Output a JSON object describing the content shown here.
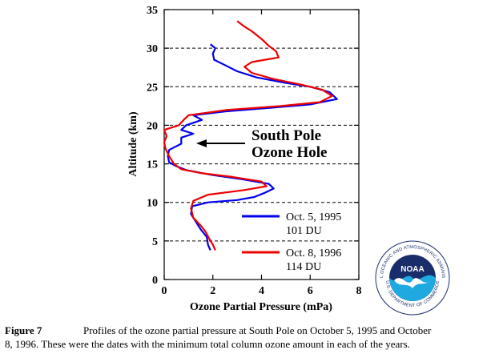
{
  "chart_data": {
    "type": "line",
    "xlabel": "Ozone Partial Pressure (mPa)",
    "ylabel": "Altitude (km)",
    "xlim": [
      0,
      8
    ],
    "ylim": [
      0,
      35
    ],
    "xticks": [
      "0",
      "2",
      "4",
      "6",
      "8"
    ],
    "yticks": [
      "0",
      "5",
      "10",
      "15",
      "20",
      "25",
      "30",
      "35"
    ],
    "grid": "dashed horizontal lines at 5, 10, 15, 20, 25, 30 km",
    "annotation": [
      "South Pole",
      "Ozone Hole"
    ],
    "series": [
      {
        "name": "Oct. 5, 1995",
        "sub": "101 DU",
        "color": "#0000ee",
        "points": [
          [
            1.9,
            3.8
          ],
          [
            1.8,
            4.5
          ],
          [
            1.75,
            5.5
          ],
          [
            1.5,
            6.5
          ],
          [
            1.3,
            7.5
          ],
          [
            1.1,
            8.5
          ],
          [
            1.15,
            9.5
          ],
          [
            1.8,
            10.0
          ],
          [
            3.0,
            10.3
          ],
          [
            3.7,
            10.7
          ],
          [
            4.1,
            11.2
          ],
          [
            4.5,
            11.8
          ],
          [
            4.3,
            12.4
          ],
          [
            3.2,
            13.0
          ],
          [
            1.9,
            13.6
          ],
          [
            0.9,
            14.2
          ],
          [
            0.5,
            14.7
          ],
          [
            0.2,
            15.2
          ],
          [
            0.15,
            16.0
          ],
          [
            0.2,
            16.8
          ],
          [
            0.7,
            17.6
          ],
          [
            0.7,
            18.4
          ],
          [
            1.2,
            18.9
          ],
          [
            0.7,
            19.4
          ],
          [
            0.9,
            20.0
          ],
          [
            1.55,
            20.7
          ],
          [
            1.2,
            21.3
          ],
          [
            2.5,
            21.8
          ],
          [
            4.5,
            22.3
          ],
          [
            6.0,
            22.7
          ],
          [
            7.1,
            23.4
          ],
          [
            6.8,
            24.3
          ],
          [
            6.0,
            25.0
          ],
          [
            5.0,
            25.5
          ],
          [
            3.8,
            26.2
          ],
          [
            3.0,
            27.0
          ],
          [
            2.5,
            27.8
          ],
          [
            2.05,
            28.5
          ],
          [
            2.0,
            29.3
          ],
          [
            2.1,
            30.0
          ],
          [
            1.9,
            30.5
          ]
        ]
      },
      {
        "name": "Oct. 8, 1996",
        "sub": "114 DU",
        "color": "#ee0000",
        "points": [
          [
            2.1,
            3.8
          ],
          [
            2.0,
            4.5
          ],
          [
            1.85,
            5.3
          ],
          [
            1.7,
            6.2
          ],
          [
            1.5,
            7.0
          ],
          [
            1.2,
            8.0
          ],
          [
            1.1,
            9.2
          ],
          [
            1.2,
            10.2
          ],
          [
            1.8,
            11.0
          ],
          [
            3.3,
            11.6
          ],
          [
            4.2,
            12.1
          ],
          [
            4.0,
            12.7
          ],
          [
            2.8,
            13.3
          ],
          [
            1.5,
            13.8
          ],
          [
            0.7,
            14.3
          ],
          [
            0.4,
            15.0
          ],
          [
            0.2,
            16.0
          ],
          [
            0.05,
            17.0
          ],
          [
            0.0,
            17.8
          ],
          [
            0.1,
            18.6
          ],
          [
            0.0,
            19.4
          ],
          [
            0.6,
            20.0
          ],
          [
            0.8,
            20.7
          ],
          [
            1.0,
            21.3
          ],
          [
            2.6,
            22.0
          ],
          [
            4.8,
            22.5
          ],
          [
            6.4,
            23.0
          ],
          [
            6.9,
            23.8
          ],
          [
            6.5,
            24.6
          ],
          [
            5.6,
            25.3
          ],
          [
            4.5,
            26.0
          ],
          [
            3.6,
            26.8
          ],
          [
            3.3,
            27.6
          ],
          [
            3.6,
            28.2
          ],
          [
            4.7,
            28.8
          ],
          [
            4.6,
            29.6
          ],
          [
            4.3,
            30.3
          ],
          [
            4.0,
            31.2
          ],
          [
            3.6,
            32.2
          ],
          [
            3.3,
            32.8
          ],
          [
            3.0,
            33.5
          ]
        ]
      }
    ]
  },
  "caption": {
    "figure": "Figure 7",
    "line1": "Profiles of the ozone partial pressure at South Pole on October 5, 1995 and October",
    "line2": "8, 1996.  These were the dates with the minimum total column ozone amount in each of the years."
  },
  "logo": {
    "name": "NOAA",
    "ring_text": "NATIONAL OCEANIC AND ATMOSPHERIC ADMINISTRATION",
    "bottom_text": "U.S. DEPARTMENT OF COMMERCE",
    "colors": {
      "navy": "#1a2d6b",
      "sky": "#20a8e0",
      "white": "#ffffff"
    }
  }
}
